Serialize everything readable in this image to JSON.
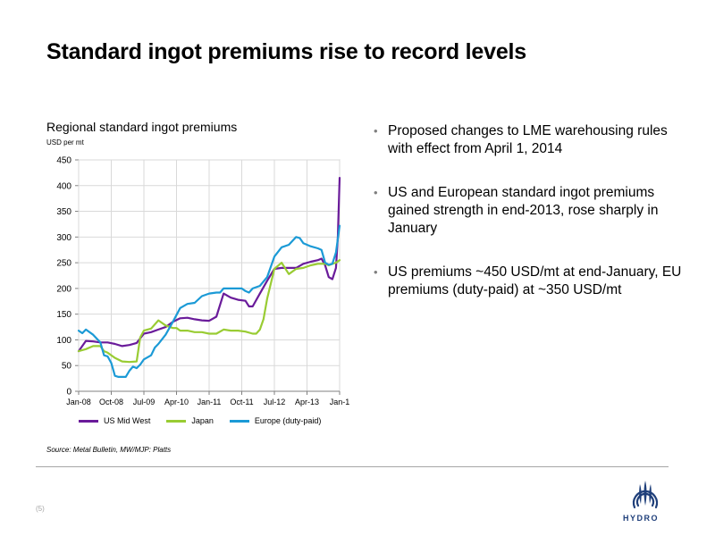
{
  "slide": {
    "title": "Standard ingot premiums rise to record levels",
    "page_number": "(5)",
    "logo_text": "HYDRO"
  },
  "chart_header": {
    "title": "Regional standard ingot premiums",
    "unit": "USD per mt"
  },
  "source": "Source: Metal Bulletin, MW/MJP: Platts",
  "bullets": [
    "Proposed changes to LME warehousing rules with effect from April 1, 2014",
    "US and European standard ingot premiums gained strength in end-2013, rose sharply in January",
    "US premiums ~450 USD/mt  at end-January, EU premiums (duty-paid) at ~350 USD/mt"
  ],
  "chart_data": {
    "type": "line",
    "title": "Regional standard ingot premiums",
    "ylabel": "USD per mt",
    "xlabel": "",
    "ylim": [
      0,
      450
    ],
    "yticks": [
      0,
      50,
      100,
      150,
      200,
      250,
      300,
      350,
      400,
      450
    ],
    "xlim": [
      0,
      72
    ],
    "xticks": [
      {
        "label": "Jan-08",
        "x": 0
      },
      {
        "label": "Oct-08",
        "x": 9
      },
      {
        "label": "Jul-09",
        "x": 18
      },
      {
        "label": "Apr-10",
        "x": 27
      },
      {
        "label": "Jan-11",
        "x": 36
      },
      {
        "label": "Oct-11",
        "x": 45
      },
      {
        "label": "Jul-12",
        "x": 54
      },
      {
        "label": "Apr-13",
        "x": 63
      },
      {
        "label": "Jan-1",
        "x": 72
      }
    ],
    "grid": true,
    "legend": "bottom",
    "series": [
      {
        "name": "US Mid West",
        "color": "#6a1b9a",
        "points": [
          [
            0,
            78
          ],
          [
            2,
            98
          ],
          [
            4,
            97
          ],
          [
            6,
            95
          ],
          [
            8,
            95
          ],
          [
            10,
            92
          ],
          [
            12,
            88
          ],
          [
            14,
            90
          ],
          [
            16,
            94
          ],
          [
            18,
            112
          ],
          [
            20,
            115
          ],
          [
            22,
            120
          ],
          [
            24,
            125
          ],
          [
            26,
            135
          ],
          [
            28,
            142
          ],
          [
            30,
            143
          ],
          [
            32,
            140
          ],
          [
            34,
            138
          ],
          [
            36,
            137
          ],
          [
            38,
            145
          ],
          [
            40,
            190
          ],
          [
            42,
            182
          ],
          [
            44,
            178
          ],
          [
            46,
            176
          ],
          [
            47,
            165
          ],
          [
            48,
            165
          ],
          [
            50,
            190
          ],
          [
            52,
            215
          ],
          [
            54,
            238
          ],
          [
            56,
            240
          ],
          [
            58,
            240
          ],
          [
            60,
            240
          ],
          [
            62,
            248
          ],
          [
            64,
            252
          ],
          [
            66,
            255
          ],
          [
            67,
            258
          ],
          [
            68,
            245
          ],
          [
            69,
            222
          ],
          [
            70,
            218
          ],
          [
            71,
            240
          ],
          [
            71.5,
            300
          ],
          [
            72,
            415
          ]
        ]
      },
      {
        "name": "Japan",
        "color": "#99cc33",
        "points": [
          [
            0,
            78
          ],
          [
            2,
            82
          ],
          [
            4,
            88
          ],
          [
            6,
            88
          ],
          [
            7,
            78
          ],
          [
            8,
            75
          ],
          [
            10,
            65
          ],
          [
            12,
            58
          ],
          [
            14,
            57
          ],
          [
            16,
            58
          ],
          [
            17,
            105
          ],
          [
            18,
            118
          ],
          [
            20,
            122
          ],
          [
            22,
            138
          ],
          [
            24,
            128
          ],
          [
            26,
            123
          ],
          [
            27,
            123
          ],
          [
            28,
            118
          ],
          [
            30,
            118
          ],
          [
            32,
            115
          ],
          [
            34,
            115
          ],
          [
            36,
            112
          ],
          [
            38,
            112
          ],
          [
            40,
            120
          ],
          [
            42,
            118
          ],
          [
            44,
            118
          ],
          [
            46,
            116
          ],
          [
            48,
            112
          ],
          [
            49,
            112
          ],
          [
            50,
            120
          ],
          [
            51,
            140
          ],
          [
            52,
            180
          ],
          [
            54,
            238
          ],
          [
            56,
            250
          ],
          [
            58,
            228
          ],
          [
            60,
            238
          ],
          [
            62,
            240
          ],
          [
            64,
            245
          ],
          [
            66,
            248
          ],
          [
            68,
            248
          ],
          [
            69,
            245
          ],
          [
            70,
            248
          ],
          [
            71,
            250
          ],
          [
            72,
            255
          ]
        ]
      },
      {
        "name": "Europe (duty-paid)",
        "color": "#1b9ad6",
        "points": [
          [
            0,
            118
          ],
          [
            1,
            113
          ],
          [
            2,
            120
          ],
          [
            4,
            110
          ],
          [
            6,
            95
          ],
          [
            7,
            70
          ],
          [
            8,
            68
          ],
          [
            9,
            55
          ],
          [
            10,
            30
          ],
          [
            11,
            28
          ],
          [
            12,
            28
          ],
          [
            13,
            28
          ],
          [
            14,
            40
          ],
          [
            15,
            48
          ],
          [
            16,
            45
          ],
          [
            17,
            52
          ],
          [
            18,
            62
          ],
          [
            20,
            70
          ],
          [
            21,
            85
          ],
          [
            22,
            92
          ],
          [
            24,
            110
          ],
          [
            26,
            135
          ],
          [
            28,
            162
          ],
          [
            30,
            170
          ],
          [
            32,
            172
          ],
          [
            34,
            185
          ],
          [
            36,
            190
          ],
          [
            38,
            192
          ],
          [
            39,
            192
          ],
          [
            40,
            200
          ],
          [
            42,
            200
          ],
          [
            44,
            200
          ],
          [
            45,
            200
          ],
          [
            46,
            195
          ],
          [
            47,
            192
          ],
          [
            48,
            200
          ],
          [
            50,
            205
          ],
          [
            52,
            222
          ],
          [
            54,
            262
          ],
          [
            56,
            280
          ],
          [
            58,
            285
          ],
          [
            60,
            300
          ],
          [
            61,
            298
          ],
          [
            62,
            288
          ],
          [
            64,
            282
          ],
          [
            66,
            278
          ],
          [
            67,
            275
          ],
          [
            68,
            250
          ],
          [
            69,
            246
          ],
          [
            70,
            248
          ],
          [
            71,
            270
          ],
          [
            72,
            322
          ]
        ]
      }
    ]
  },
  "colors": {
    "us_mid_west": "#6a1b9a",
    "japan": "#99cc33",
    "europe": "#1b9ad6",
    "brand": "#1f3f7a"
  }
}
